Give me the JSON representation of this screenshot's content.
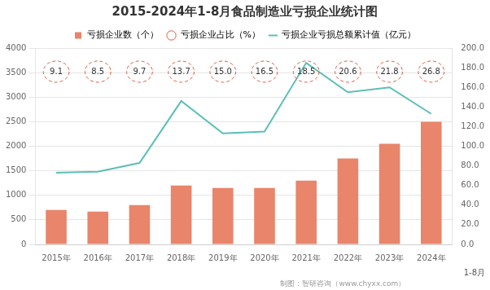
{
  "chart_data": {
    "type": "bar",
    "title": "2015-2024年1-8月食品制造业亏损企业统计图",
    "categories": [
      "2015年",
      "2016年",
      "2017年",
      "2018年",
      "2019年",
      "2020年",
      "2021年",
      "2022年",
      "2023年",
      "2024年"
    ],
    "series": [
      {
        "name": "亏损企业数（个）",
        "type": "bar",
        "color": "#E8856A",
        "values": [
          700,
          670,
          800,
          1200,
          1150,
          1150,
          1300,
          1750,
          2050,
          2500
        ]
      },
      {
        "name": "亏损企业占比（%）",
        "type": "label",
        "marker": "circle",
        "line_style": "dashed",
        "color": "#E05840",
        "data_labels": true,
        "values": [
          9.1,
          8.5,
          9.7,
          13.7,
          15.0,
          16.5,
          18.5,
          20.6,
          21.8,
          26.8
        ],
        "value_labels": [
          "9.1",
          "8.5",
          "9.7",
          "13.7",
          "15.0",
          "16.5",
          "18.5",
          "20.6",
          "21.8",
          "26.8"
        ]
      },
      {
        "name": "亏损企业亏损总额累计值（亿元）",
        "type": "line",
        "axis": "y2",
        "color": "#5BBFB5",
        "values": [
          73,
          74,
          83,
          146,
          113,
          115,
          185,
          155,
          160,
          133
        ]
      }
    ],
    "ylim": [
      0,
      4000
    ],
    "yticks": [
      0,
      500,
      1000,
      1500,
      2000,
      2500,
      3000,
      3500,
      4000
    ],
    "y2lim": [
      0,
      200
    ],
    "y2ticks": [
      {
        "value": 0,
        "label": "0.0"
      },
      {
        "value": 20,
        "label": "20.0"
      },
      {
        "value": 40,
        "label": "40.0"
      },
      {
        "value": 60,
        "label": "60.0"
      },
      {
        "value": 80,
        "label": "80.0"
      },
      {
        "value": 100,
        "label": "100.0"
      },
      {
        "value": 120,
        "label": "120.0"
      },
      {
        "value": 140,
        "label": "140.0"
      },
      {
        "value": 160,
        "label": "160.0"
      },
      {
        "value": 180,
        "label": "180.0"
      },
      {
        "value": 200,
        "label": "200.0"
      }
    ],
    "grid": true,
    "legend": "top",
    "annotations": [
      "1-8月",
      "制图：智研咨询（www.chyxx.com）"
    ]
  }
}
